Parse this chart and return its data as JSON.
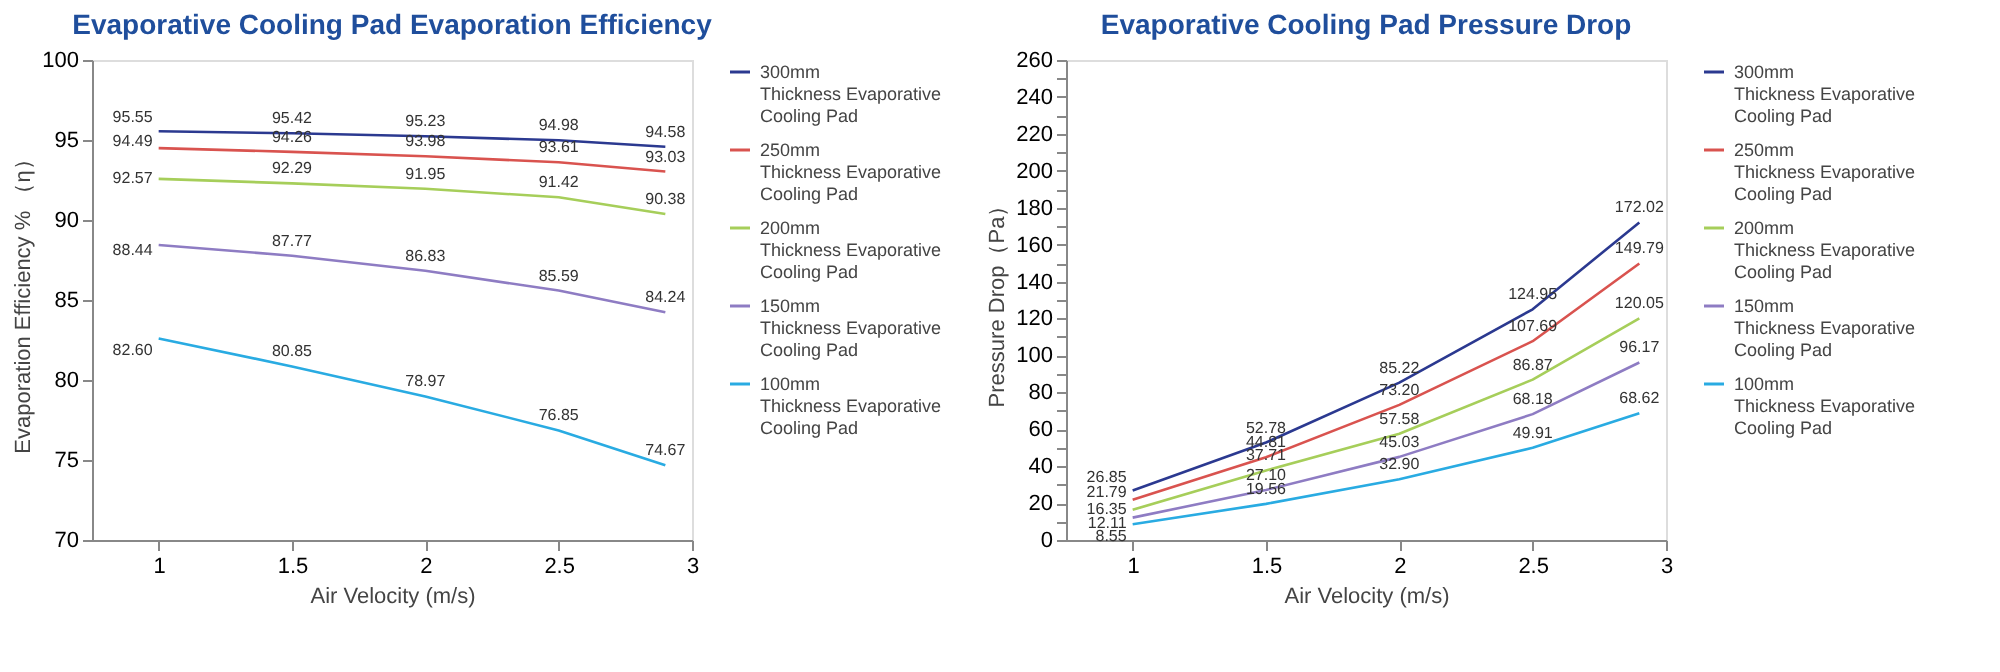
{
  "chart_data": [
    {
      "type": "line",
      "title": "Evaporative Cooling Pad Evaporation Efficiency",
      "xlabel": "Air Velocity  (m/s)",
      "ylabel": "Evaporation Efficiency % （η）",
      "x": [
        1,
        1.5,
        2,
        2.5,
        2.9
      ],
      "xlim": [
        0.75,
        3
      ],
      "xticks": [
        1,
        1.5,
        2,
        2.5,
        3
      ],
      "ylim": [
        70,
        100
      ],
      "yticks": [
        70,
        75,
        80,
        85,
        90,
        95,
        100
      ],
      "grid": false,
      "legend": "right",
      "marker": "none",
      "line_style": "solid",
      "series": [
        {
          "name": "300mm Thickness Evaporative Cooling Pad",
          "color": "#2b3990",
          "values": [
            95.55,
            95.42,
            95.23,
            94.98,
            94.58
          ],
          "value_labels": [
            "95.55",
            "95.42",
            "95.23",
            "94.98",
            "94.58"
          ]
        },
        {
          "name": "250mm Thickness Evaporative Cooling Pad",
          "color": "#d9534f",
          "values": [
            94.49,
            94.26,
            93.98,
            93.61,
            93.03
          ],
          "value_labels": [
            "94.49",
            "94.26",
            "93.98",
            "93.61",
            "93.03"
          ]
        },
        {
          "name": "200mm Thickness Evaporative Cooling Pad",
          "color": "#a6ce5a",
          "values": [
            92.57,
            92.29,
            91.95,
            91.42,
            90.38
          ],
          "value_labels": [
            "92.57",
            "92.29",
            "91.95",
            "91.42",
            "90.38"
          ]
        },
        {
          "name": "150mm Thickness Evaporative Cooling Pad",
          "color": "#8e7cc3",
          "values": [
            88.44,
            87.77,
            86.83,
            85.59,
            84.24
          ],
          "value_labels": [
            "88.44",
            "87.77",
            "86.83",
            "85.59",
            "84.24"
          ]
        },
        {
          "name": "100mm Thickness Evaporative Cooling Pad",
          "color": "#29abe2",
          "values": [
            82.6,
            80.85,
            78.97,
            76.85,
            74.67
          ],
          "value_labels": [
            "82.60",
            "80.85",
            "78.97",
            "76.85",
            "74.67"
          ]
        }
      ]
    },
    {
      "type": "line",
      "title": "Evaporative Cooling Pad Pressure Drop",
      "xlabel": "Air Velocity  (m/s)",
      "ylabel": "Pressure Drop（Pa）",
      "x": [
        1,
        1.5,
        2,
        2.5,
        2.9
      ],
      "xlim": [
        0.75,
        3
      ],
      "xticks": [
        1,
        1.5,
        2,
        2.5,
        3
      ],
      "ylim": [
        0,
        260
      ],
      "yticks": [
        0,
        {
          "value": 10,
          "label": null
        },
        20,
        {
          "value": 30,
          "label": null
        },
        40,
        {
          "value": 50,
          "label": null
        },
        60,
        {
          "value": 70,
          "label": null
        },
        80,
        {
          "value": 90,
          "label": null
        },
        100,
        {
          "value": 110,
          "label": null
        },
        120,
        {
          "value": 130,
          "label": null
        },
        140,
        {
          "value": 150,
          "label": null
        },
        160,
        {
          "value": 170,
          "label": null
        },
        180,
        {
          "value": 190,
          "label": null
        },
        200,
        {
          "value": 210,
          "label": null
        },
        220,
        {
          "value": 230,
          "label": null
        },
        240,
        {
          "value": 250,
          "label": null
        },
        260
      ],
      "grid": false,
      "legend": "right",
      "marker": "none",
      "line_style": "solid",
      "series": [
        {
          "name": "300mm Thickness Evaporative Cooling Pad",
          "color": "#2b3990",
          "values": [
            26.85,
            52.78,
            85.22,
            124.95,
            172.02
          ],
          "value_labels": [
            "26.85",
            "52.78",
            "85.22",
            "124.95",
            "172.02"
          ]
        },
        {
          "name": "250mm Thickness Evaporative Cooling Pad",
          "color": "#d9534f",
          "values": [
            21.79,
            44.81,
            73.2,
            107.69,
            149.79
          ],
          "value_labels": [
            "21.79",
            "44.81",
            "73.20",
            "107.69",
            "149.79"
          ]
        },
        {
          "name": "200mm Thickness Evaporative Cooling Pad",
          "color": "#a6ce5a",
          "values": [
            16.35,
            37.71,
            57.58,
            86.87,
            120.05
          ],
          "value_labels": [
            "16.35",
            "37.71",
            "57.58",
            "86.87",
            "120.05"
          ]
        },
        {
          "name": "150mm Thickness Evaporative Cooling Pad",
          "color": "#8e7cc3",
          "values": [
            12.11,
            27.1,
            45.03,
            68.18,
            96.17
          ],
          "value_labels": [
            "12.11",
            "27.10",
            "45.03",
            "68.18",
            "96.17"
          ]
        },
        {
          "name": "100mm Thickness Evaporative Cooling Pad",
          "color": "#29abe2",
          "values": [
            8.55,
            19.56,
            32.9,
            49.91,
            68.62
          ],
          "value_labels": [
            "8.55",
            "19.56",
            "32.90",
            "49.91",
            "68.62"
          ]
        }
      ]
    }
  ]
}
